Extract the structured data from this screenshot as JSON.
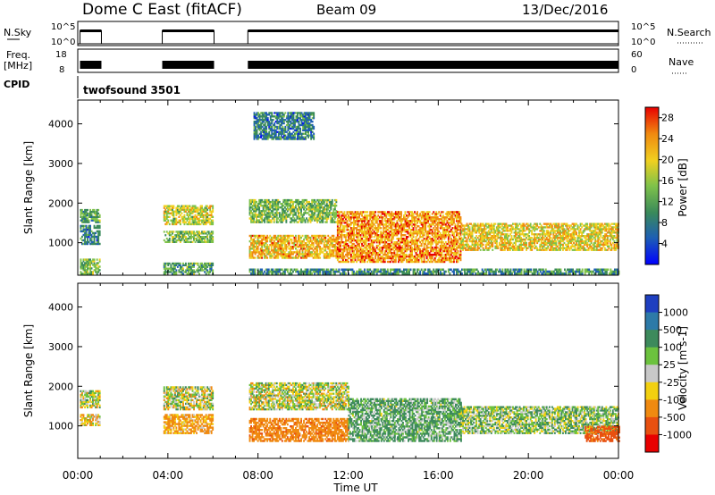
{
  "header": {
    "station": "Dome C East (fitACF)",
    "beam": "Beam 09",
    "date": "13/Dec/2016"
  },
  "status_panels": {
    "nsky_label": "N.Sky",
    "nsky_ticks": [
      "10^5",
      "10^0"
    ],
    "nsearch_label": "N.Search",
    "nsearch_ticks": [
      "10^5",
      "10^0"
    ],
    "freq_label": "Freq.",
    "freq_unit": "[MHz]",
    "freq_ticks": [
      "18",
      "8"
    ],
    "nave_label": "Nave",
    "nave_ticks": [
      "60",
      "0"
    ],
    "cpid_label": "CPID",
    "cpid_value": "twofsound 3501"
  },
  "chart_data": [
    {
      "type": "heatmap",
      "name": "power",
      "xlabel": "Time UT",
      "ylabel": "Slant Range [km]",
      "xlim": [
        0,
        24
      ],
      "ylim": [
        180,
        4600
      ],
      "yticks": [
        "1000",
        "2000",
        "3000",
        "4000"
      ],
      "xticks": [
        "00:00",
        "04:00",
        "08:00",
        "12:00",
        "16:00",
        "20:00",
        "00:00"
      ],
      "colorbar": {
        "label": "Power [dB]",
        "ticks": [
          "4",
          "8",
          "12",
          "16",
          "20",
          "24",
          "28"
        ],
        "range": [
          0,
          30
        ],
        "colors": [
          "#0000ff",
          "#1e5fb4",
          "#3a8a5a",
          "#7fc24a",
          "#f0d020",
          "#f08a10",
          "#e80000"
        ]
      },
      "data_gaps_hours": [
        [
          1.05,
          3.75
        ],
        [
          6.05,
          7.55
        ]
      ],
      "echo_regions": [
        {
          "t0": 0.1,
          "t1": 1.0,
          "r0": 1500,
          "r1": 1850,
          "v": 12
        },
        {
          "t0": 0.1,
          "t1": 1.0,
          "r0": 950,
          "r1": 1450,
          "v": 8
        },
        {
          "t0": 0.1,
          "t1": 1.0,
          "r0": 200,
          "r1": 600,
          "v": 14
        },
        {
          "t0": 3.8,
          "t1": 6.0,
          "r0": 1450,
          "r1": 1950,
          "v": 18
        },
        {
          "t0": 3.8,
          "t1": 6.0,
          "r0": 1000,
          "r1": 1300,
          "v": 14
        },
        {
          "t0": 3.8,
          "t1": 6.0,
          "r0": 200,
          "r1": 500,
          "v": 12
        },
        {
          "t0": 7.6,
          "t1": 11.5,
          "r0": 1500,
          "r1": 2100,
          "v": 14
        },
        {
          "t0": 7.6,
          "t1": 11.5,
          "r0": 600,
          "r1": 1200,
          "v": 22
        },
        {
          "t0": 11.5,
          "t1": 17.0,
          "r0": 500,
          "r1": 1800,
          "v": 24
        },
        {
          "t0": 17.0,
          "t1": 24.0,
          "r0": 800,
          "r1": 1500,
          "v": 20
        },
        {
          "t0": 7.6,
          "t1": 24.0,
          "r0": 200,
          "r1": 350,
          "v": 10
        },
        {
          "t0": 7.8,
          "t1": 10.5,
          "r0": 3600,
          "r1": 4300,
          "v": 8
        }
      ]
    },
    {
      "type": "heatmap",
      "name": "velocity",
      "xlabel": "Time UT",
      "ylabel": "Slant Range [km]",
      "xlim": [
        0,
        24
      ],
      "ylim": [
        180,
        4600
      ],
      "yticks": [
        "1000",
        "2000",
        "3000",
        "4000"
      ],
      "xticks": [
        "00:00",
        "04:00",
        "08:00",
        "12:00",
        "16:00",
        "20:00",
        "00:00"
      ],
      "colorbar": {
        "label": "Velocity [m s-1]",
        "ticks": [
          "1000",
          "500",
          "100",
          "25",
          "-25",
          "-100",
          "-500",
          "-1000"
        ],
        "colors": [
          "#1e3fc0",
          "#2d7aa8",
          "#3d8a5c",
          "#6cc23e",
          "#c8c8c8",
          "#f2d010",
          "#f08a10",
          "#e85010",
          "#e80000"
        ]
      },
      "data_gaps_hours": [
        [
          1.05,
          3.75
        ],
        [
          6.05,
          7.55
        ]
      ],
      "echo_regions": [
        {
          "t0": 0.1,
          "t1": 1.0,
          "r0": 1450,
          "r1": 1900,
          "v": 0
        },
        {
          "t0": 0.1,
          "t1": 1.0,
          "r0": 1000,
          "r1": 1300,
          "v": -80
        },
        {
          "t0": 3.8,
          "t1": 6.0,
          "r0": 1400,
          "r1": 2000,
          "v": 0
        },
        {
          "t0": 3.8,
          "t1": 6.0,
          "r0": 800,
          "r1": 1300,
          "v": -150
        },
        {
          "t0": 7.6,
          "t1": 12.0,
          "r0": 1400,
          "r1": 2100,
          "v": 0
        },
        {
          "t0": 7.6,
          "t1": 12.0,
          "r0": 600,
          "r1": 1200,
          "v": -400
        },
        {
          "t0": 12.0,
          "t1": 17.0,
          "r0": 600,
          "r1": 1700,
          "v": 120
        },
        {
          "t0": 17.0,
          "t1": 24.0,
          "r0": 800,
          "r1": 1500,
          "v": 60
        },
        {
          "t0": 22.5,
          "t1": 24.0,
          "r0": 600,
          "r1": 1000,
          "v": -600
        }
      ]
    }
  ]
}
